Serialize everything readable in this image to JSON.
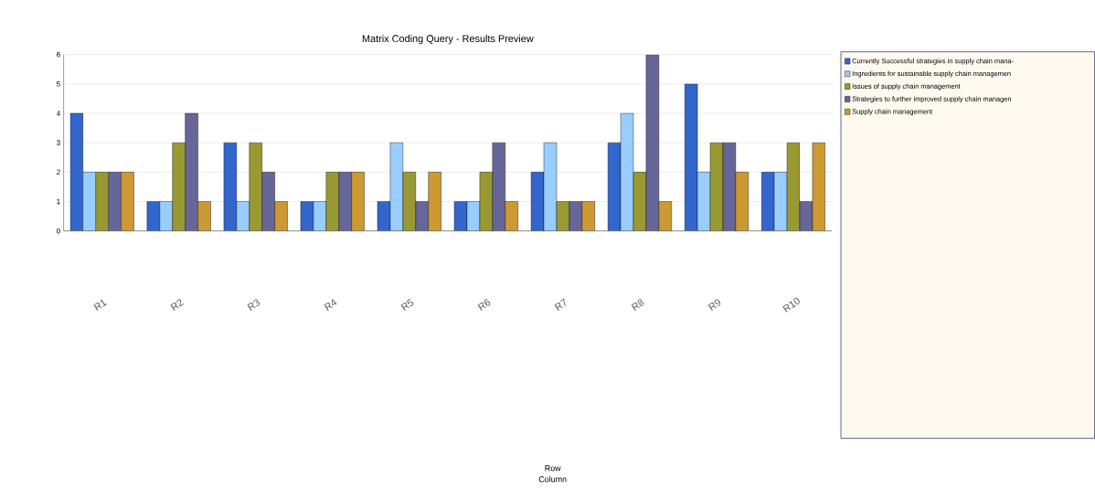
{
  "chart_data": {
    "type": "bar",
    "title": "Matrix Coding Query - Results Preview",
    "annotations": [
      "Row",
      "Column"
    ],
    "categories": [
      "R1",
      "R2",
      "R3",
      "R4",
      "R5",
      "R6",
      "R7",
      "R8",
      "R9",
      "R10"
    ],
    "series": [
      {
        "name": "Currently Successful strategies in supply chain mana-",
        "color": "#3366cc",
        "values": [
          4,
          1,
          3,
          1,
          1,
          1,
          2,
          3,
          5,
          2
        ]
      },
      {
        "name": "Ingredients for sustainable supply chain managemen",
        "color": "#99ccff",
        "values": [
          2,
          1,
          1,
          1,
          3,
          1,
          3,
          4,
          2,
          2
        ]
      },
      {
        "name": "Issues of supply chain management",
        "color": "#999933",
        "values": [
          2,
          3,
          3,
          2,
          2,
          2,
          1,
          2,
          3,
          3
        ]
      },
      {
        "name": "Strategies to further improved supply chain managen",
        "color": "#666699",
        "values": [
          2,
          4,
          2,
          2,
          1,
          3,
          1,
          6,
          3,
          1
        ]
      },
      {
        "name": "Supply chain management",
        "color": "#cc9933",
        "values": [
          2,
          1,
          1,
          2,
          2,
          1,
          1,
          1,
          2,
          3
        ]
      }
    ],
    "ylim": [
      0,
      6
    ],
    "yticks": [
      0,
      1,
      2,
      3,
      4,
      5,
      6
    ],
    "grid": "y",
    "legend": "right"
  }
}
